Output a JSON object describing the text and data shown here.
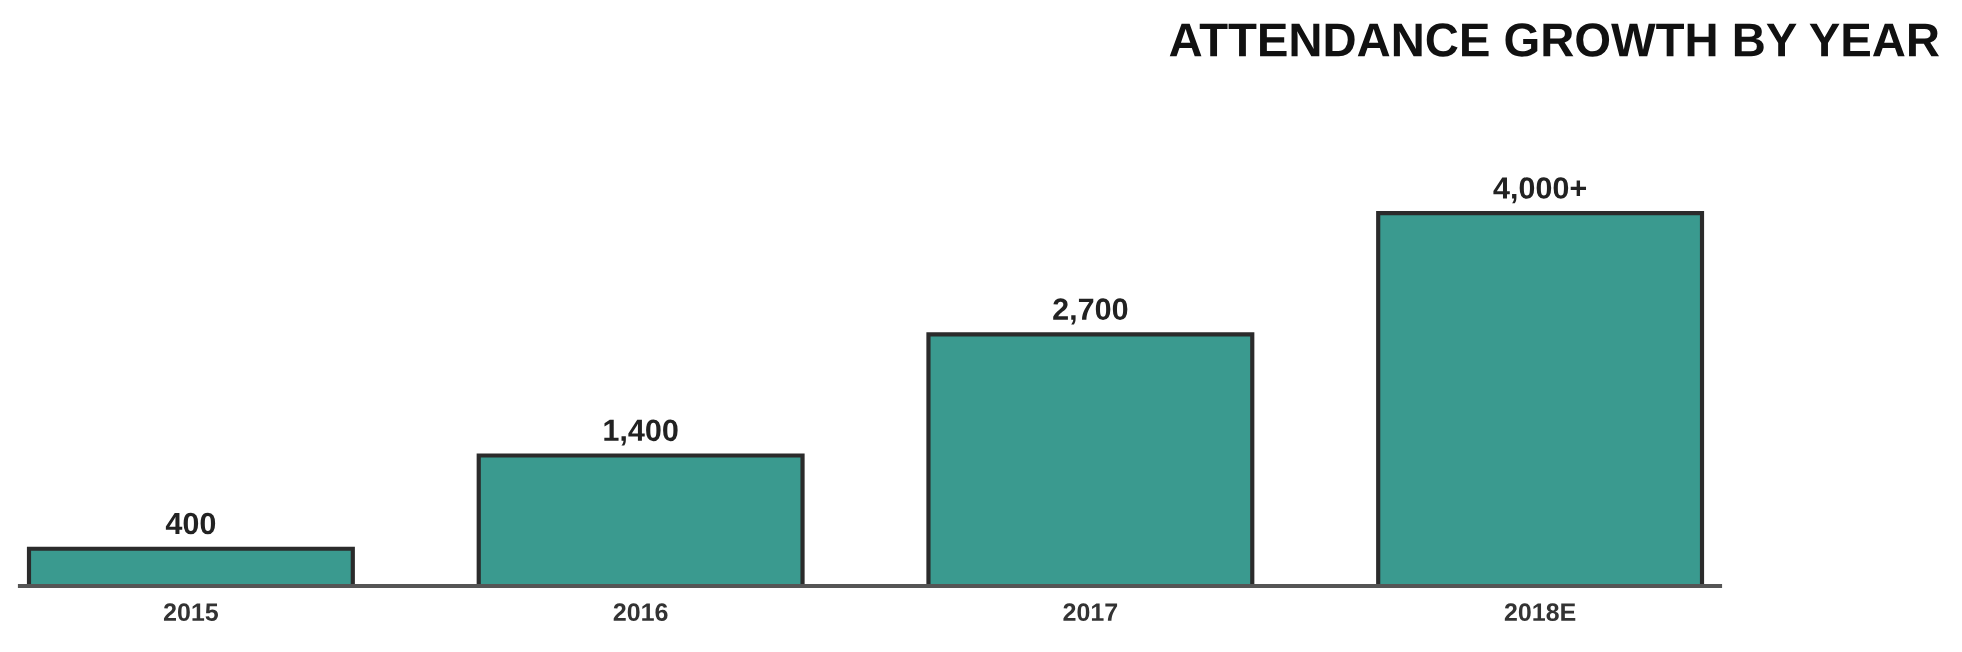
{
  "chart_data": {
    "type": "bar",
    "title": "ATTENDANCE GROWTH BY YEAR",
    "categories": [
      "2015",
      "2016",
      "2017",
      "2018E"
    ],
    "values": [
      400,
      1400,
      2700,
      4000
    ],
    "value_labels": [
      "400",
      "1,400",
      "2,700",
      "4,000+"
    ],
    "color": "#3a9a8f",
    "grid": false,
    "legend": false
  }
}
